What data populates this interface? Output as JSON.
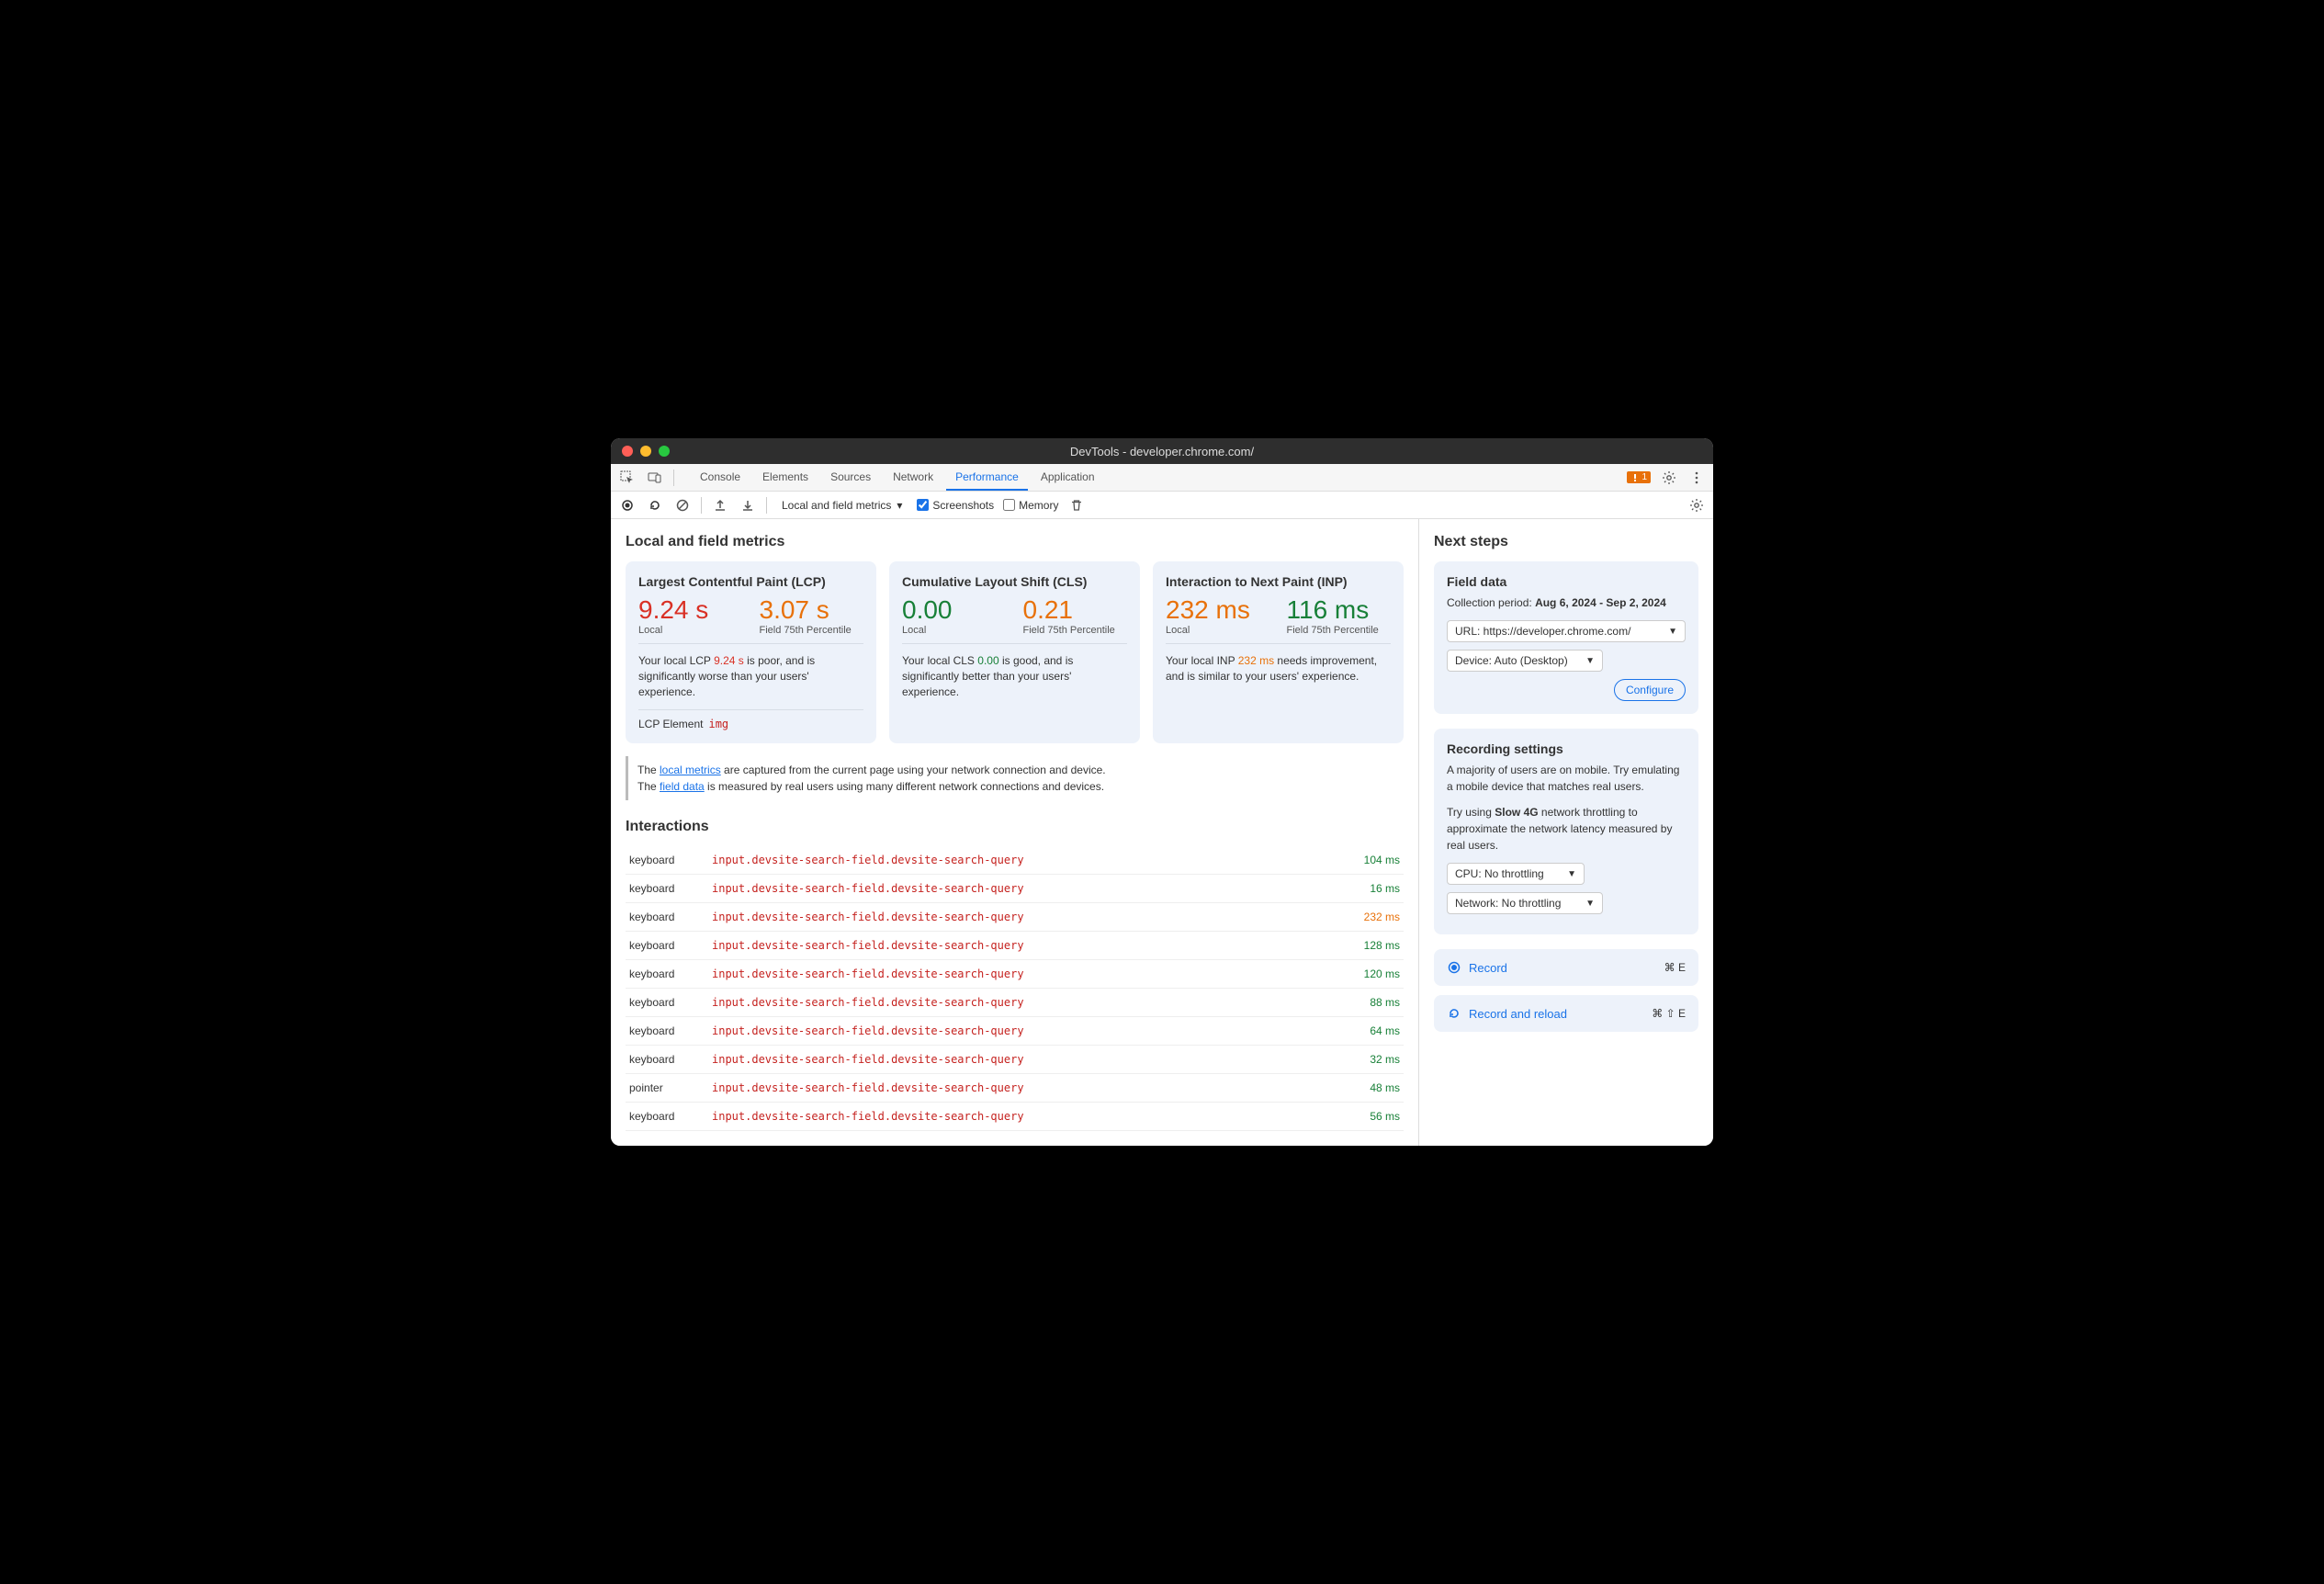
{
  "window": {
    "title": "DevTools - developer.chrome.com/"
  },
  "tabs": {
    "items": [
      {
        "label": "Console",
        "active": false
      },
      {
        "label": "Elements",
        "active": false
      },
      {
        "label": "Sources",
        "active": false
      },
      {
        "label": "Network",
        "active": false
      },
      {
        "label": "Performance",
        "active": true
      },
      {
        "label": "Application",
        "active": false
      }
    ],
    "issues_count": "1"
  },
  "toolbar": {
    "selector": "Local and field metrics",
    "screenshots_label": "Screenshots",
    "screenshots_checked": true,
    "memory_label": "Memory",
    "memory_checked": false
  },
  "main": {
    "title": "Local and field metrics",
    "cards": [
      {
        "title": "Largest Contentful Paint (LCP)",
        "local_value": "9.24 s",
        "local_class": "poor",
        "local_label": "Local",
        "field_value": "3.07 s",
        "field_class": "orange",
        "field_label": "Field 75th Percentile",
        "desc_pre": "Your local LCP ",
        "desc_val": "9.24 s",
        "desc_val_class": "val-poor",
        "desc_post": " is poor, and is significantly worse than your users' experience.",
        "lcp_element_label": "LCP Element",
        "lcp_element_tag": "img"
      },
      {
        "title": "Cumulative Layout Shift (CLS)",
        "local_value": "0.00",
        "local_class": "good",
        "local_label": "Local",
        "field_value": "0.21",
        "field_class": "orange",
        "field_label": "Field 75th Percentile",
        "desc_pre": "Your local CLS ",
        "desc_val": "0.00",
        "desc_val_class": "val-good",
        "desc_post": " is good, and is significantly better than your users' experience."
      },
      {
        "title": "Interaction to Next Paint (INP)",
        "local_value": "232 ms",
        "local_class": "orange",
        "local_label": "Local",
        "field_value": "116 ms",
        "field_class": "good",
        "field_label": "Field 75th Percentile",
        "desc_pre": "Your local INP ",
        "desc_val": "232 ms",
        "desc_val_class": "val-orange",
        "desc_post": " needs improvement, and is similar to your users' experience."
      }
    ],
    "info": {
      "line1_pre": "The ",
      "line1_link": "local metrics",
      "line1_post": " are captured from the current page using your network connection and device.",
      "line2_pre": "The ",
      "line2_link": "field data",
      "line2_post": " is measured by real users using many different network connections and devices."
    },
    "interactions_title": "Interactions",
    "interactions": [
      {
        "kind": "keyboard",
        "selector": "input.devsite-search-field.devsite-search-query",
        "duration": "104 ms",
        "dur_class": "dur-green"
      },
      {
        "kind": "keyboard",
        "selector": "input.devsite-search-field.devsite-search-query",
        "duration": "16 ms",
        "dur_class": "dur-green"
      },
      {
        "kind": "keyboard",
        "selector": "input.devsite-search-field.devsite-search-query",
        "duration": "232 ms",
        "dur_class": "dur-orange"
      },
      {
        "kind": "keyboard",
        "selector": "input.devsite-search-field.devsite-search-query",
        "duration": "128 ms",
        "dur_class": "dur-green"
      },
      {
        "kind": "keyboard",
        "selector": "input.devsite-search-field.devsite-search-query",
        "duration": "120 ms",
        "dur_class": "dur-green"
      },
      {
        "kind": "keyboard",
        "selector": "input.devsite-search-field.devsite-search-query",
        "duration": "88 ms",
        "dur_class": "dur-green"
      },
      {
        "kind": "keyboard",
        "selector": "input.devsite-search-field.devsite-search-query",
        "duration": "64 ms",
        "dur_class": "dur-green"
      },
      {
        "kind": "keyboard",
        "selector": "input.devsite-search-field.devsite-search-query",
        "duration": "32 ms",
        "dur_class": "dur-green"
      },
      {
        "kind": "pointer",
        "selector": "input.devsite-search-field.devsite-search-query",
        "duration": "48 ms",
        "dur_class": "dur-green"
      },
      {
        "kind": "keyboard",
        "selector": "input.devsite-search-field.devsite-search-query",
        "duration": "56 ms",
        "dur_class": "dur-green"
      }
    ]
  },
  "sidebar": {
    "title": "Next steps",
    "field_data": {
      "title": "Field data",
      "period_label": "Collection period: ",
      "period_value": "Aug 6, 2024 - Sep 2, 2024",
      "url_select": "URL: https://developer.chrome.com/",
      "device_select": "Device: Auto (Desktop)",
      "configure": "Configure"
    },
    "recording": {
      "title": "Recording settings",
      "p1": "A majority of users are on mobile. Try emulating a mobile device that matches real users.",
      "p2_pre": "Try using ",
      "p2_bold": "Slow 4G",
      "p2_post": " network throttling to approximate the network latency measured by real users.",
      "cpu_select": "CPU: No throttling",
      "net_select": "Network: No throttling"
    },
    "record": {
      "label": "Record",
      "kbd": "⌘ E"
    },
    "record_reload": {
      "label": "Record and reload",
      "kbd": "⌘ ⇧ E"
    }
  },
  "colors": {
    "accent": "#1a73e8",
    "poor": "#d93025",
    "good": "#188038",
    "orange": "#e8710a",
    "card_bg": "#edf2fa"
  }
}
